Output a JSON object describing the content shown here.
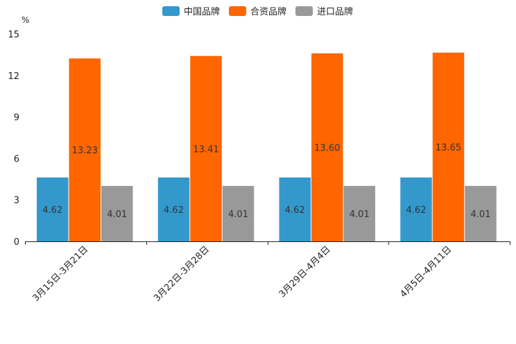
{
  "chart_data": {
    "type": "bar",
    "unit": "%",
    "categories": [
      "3月15日-3月21日",
      "3月22日-3月28日",
      "3月29日-4月4日",
      "4月5日-4月11日"
    ],
    "series": [
      {
        "name": "中国品牌",
        "color": "#3399cc",
        "values": [
          4.62,
          4.62,
          4.62,
          4.62
        ],
        "labels": [
          "4.62",
          "4.62",
          "4.62",
          "4.62"
        ]
      },
      {
        "name": "合资品牌",
        "color": "#ff6600",
        "values": [
          13.23,
          13.41,
          13.6,
          13.65
        ],
        "labels": [
          "13.23",
          "13.41",
          "13.60",
          "13.65"
        ]
      },
      {
        "name": "进口品牌",
        "color": "#999999",
        "values": [
          4.01,
          4.01,
          4.01,
          4.01
        ],
        "labels": [
          "4.01",
          "4.01",
          "4.01",
          "4.01"
        ]
      }
    ],
    "yticks": [
      "0",
      "3",
      "6",
      "9",
      "12",
      "15"
    ],
    "ylim": [
      0,
      15
    ],
    "legend_position": "top-center",
    "grid": false
  }
}
